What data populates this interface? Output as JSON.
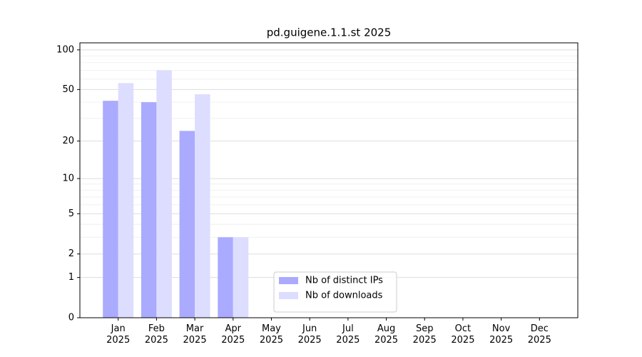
{
  "chart_data": {
    "type": "bar",
    "title": "pd.guigene.1.1.st 2025",
    "categories": [
      "Jan\n2025",
      "Feb\n2025",
      "Mar\n2025",
      "Apr\n2025",
      "May\n2025",
      "Jun\n2025",
      "Jul\n2025",
      "Aug\n2025",
      "Sep\n2025",
      "Oct\n2025",
      "Nov\n2025",
      "Dec\n2025"
    ],
    "series": [
      {
        "name": "Nb of distinct IPs",
        "color": "#aaaaff",
        "values": [
          41,
          40,
          24,
          3,
          0,
          0,
          0,
          0,
          0,
          0,
          0,
          0
        ]
      },
      {
        "name": "Nb of downloads",
        "color": "#ddddff",
        "values": [
          56,
          70,
          46,
          3,
          0,
          0,
          0,
          0,
          0,
          0,
          0,
          0
        ]
      }
    ],
    "yscale": "log1p",
    "ylim": [
      0,
      113
    ],
    "yticks": [
      0,
      1,
      2,
      5,
      10,
      20,
      50,
      100
    ],
    "yminorticks": [
      3,
      4,
      6,
      7,
      8,
      9,
      30,
      40,
      60,
      70,
      80,
      90
    ],
    "grid": true,
    "legend": "lower center"
  }
}
